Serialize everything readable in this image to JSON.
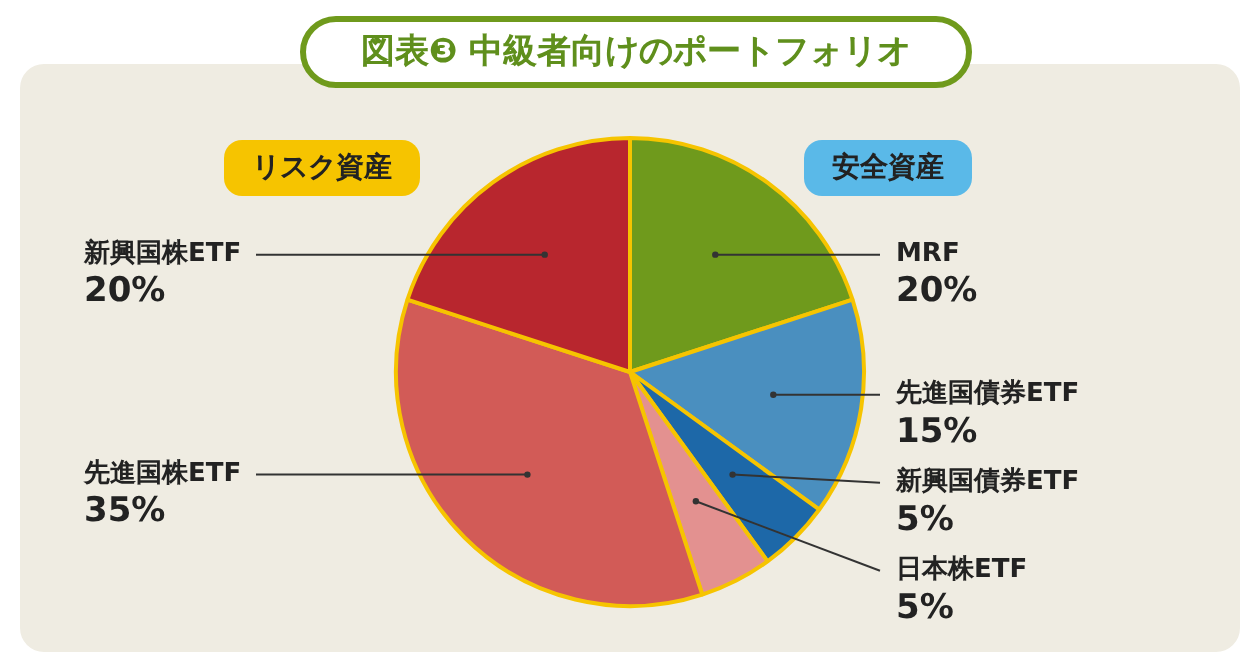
{
  "chart_data": {
    "type": "pie",
    "title": "図表❸ 中級者向けのポートフォリオ",
    "categories": [
      "MRF",
      "先進国債券ETF",
      "新興国債券ETF",
      "日本株ETF",
      "先進国株ETF",
      "新興国株ETF"
    ],
    "values": [
      20,
      15,
      5,
      5,
      35,
      20
    ],
    "value_labels": [
      "20%",
      "15%",
      "5%",
      "5%",
      "35%",
      "20%"
    ],
    "colors": [
      "#6f9a1c",
      "#4a8fbf",
      "#1d68a8",
      "#e39190",
      "#d25b57",
      "#b8262e"
    ],
    "annotations": [
      "リスク資産",
      "安全資産"
    ],
    "legend": false
  }
}
